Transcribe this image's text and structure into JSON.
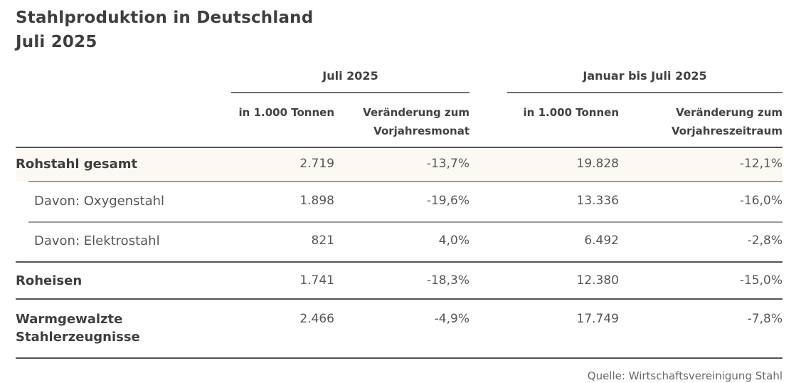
{
  "title": {
    "line1": "Stahlproduktion in Deutschland",
    "line2": "Juli 2025"
  },
  "table": {
    "column_groups": [
      {
        "label": "Juli 2025",
        "columns": [
          "in 1.000 Tonnen",
          "Veränderung zum Vorjahresmonat"
        ]
      },
      {
        "label": "Januar bis Juli 2025",
        "columns": [
          "in 1.000 Tonnen",
          "Veränderung zum Vorjahreszeitraum"
        ]
      }
    ],
    "rows": [
      {
        "label": "Rohstahl gesamt",
        "values": [
          "2.719",
          "-13,7%",
          "19.828",
          "-12,1%"
        ]
      },
      {
        "label": "Davon: Oxygenstahl",
        "values": [
          "1.898",
          "-19,6%",
          "13.336",
          "-16,0%"
        ]
      },
      {
        "label": "Davon: Elektrostahl",
        "values": [
          "821",
          "4,0%",
          "6.492",
          "-2,8%"
        ]
      },
      {
        "label": "Roheisen",
        "values": [
          "1.741",
          "-18,3%",
          "12.380",
          "-15,0%"
        ]
      },
      {
        "label": "Warmgewalzte Stahlerzeugnisse",
        "values": [
          "2.466",
          "-4,9%",
          "17.749",
          "-7,8%"
        ]
      }
    ],
    "source": "Quelle: Wirtschaftsvereinigung Stahl"
  },
  "colors": {
    "background": "#ffffff",
    "text_dark": "#3e3e3e",
    "text_medium": "#555555",
    "rule_dark": "#545454",
    "rule_light": "#9b9b9b",
    "highlight_row": "#fbf9f2"
  },
  "chart_data": {
    "type": "table",
    "title": "Stahlproduktion in Deutschland Juli 2025",
    "column_groups": [
      "Juli 2025",
      "Januar bis Juli 2025"
    ],
    "columns": [
      "Juli 2025 – in 1.000 Tonnen",
      "Juli 2025 – Veränderung zum Vorjahresmonat (%)",
      "Januar bis Juli 2025 – in 1.000 Tonnen",
      "Januar bis Juli 2025 – Veränderung zum Vorjahreszeitraum (%)"
    ],
    "rows": [
      {
        "label": "Rohstahl gesamt",
        "values": [
          2719,
          -13.7,
          19828,
          -12.1
        ]
      },
      {
        "label": "Davon: Oxygenstahl",
        "values": [
          1898,
          -19.6,
          13336,
          -16.0
        ]
      },
      {
        "label": "Davon: Elektrostahl",
        "values": [
          821,
          4.0,
          6492,
          -2.8
        ]
      },
      {
        "label": "Roheisen",
        "values": [
          1741,
          -18.3,
          12380,
          -15.0
        ]
      },
      {
        "label": "Warmgewalzte Stahlerzeugnisse",
        "values": [
          2466,
          -4.9,
          17749,
          -7.8
        ]
      }
    ],
    "source": "Quelle: Wirtschaftsvereinigung Stahl"
  }
}
